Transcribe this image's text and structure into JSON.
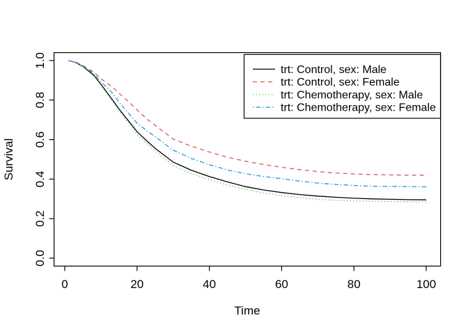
{
  "figure": {
    "background": "#ffffff",
    "xlabel": "Time",
    "ylabel": "Survival",
    "x_tick_labels": [
      "0",
      "20",
      "40",
      "60",
      "80",
      "100"
    ],
    "y_tick_labels": [
      "0.0",
      "0.2",
      "0.4",
      "0.6",
      "0.8",
      "1.0"
    ]
  },
  "legend": {
    "position": "top-right",
    "entries": [
      {
        "label": "trt: Control, sex: Male",
        "color": "#000000",
        "dash": ""
      },
      {
        "label": "trt: Control, sex: Female",
        "color": "#DF536B",
        "dash": "6,5"
      },
      {
        "label": "trt: Chemotherapy, sex: Male",
        "color": "#61D04F",
        "dash": "1.5,3"
      },
      {
        "label": "trt: Chemotherapy, sex: Female",
        "color": "#2297E6",
        "dash": "1.5,3,6.5,3"
      }
    ]
  },
  "chart_data": {
    "type": "line",
    "title": "",
    "xlabel": "Time",
    "ylabel": "Survival",
    "xlim": [
      1,
      100
    ],
    "ylim": [
      0,
      1
    ],
    "x_ticks": [
      0,
      20,
      40,
      60,
      80,
      100
    ],
    "y_ticks": [
      0.0,
      0.2,
      0.4,
      0.6,
      0.8,
      1.0
    ],
    "grid": false,
    "legend_position": "top-right",
    "x": [
      1,
      3,
      5,
      8,
      10,
      13,
      15,
      18,
      20,
      23,
      25,
      30,
      35,
      40,
      45,
      50,
      55,
      60,
      65,
      70,
      75,
      80,
      85,
      90,
      95,
      100
    ],
    "series": [
      {
        "name": "trt: Control, sex: Male",
        "color": "#000000",
        "linestyle": "solid",
        "values": [
          1.0,
          0.99,
          0.97,
          0.926,
          0.88,
          0.806,
          0.755,
          0.686,
          0.64,
          0.588,
          0.556,
          0.486,
          0.445,
          0.413,
          0.386,
          0.362,
          0.345,
          0.332,
          0.322,
          0.314,
          0.308,
          0.303,
          0.3,
          0.298,
          0.296,
          0.295
        ]
      },
      {
        "name": "trt: Control, sex: Female",
        "color": "#DF536B",
        "linestyle": "dashed",
        "values": [
          1.0,
          0.992,
          0.975,
          0.942,
          0.908,
          0.869,
          0.835,
          0.786,
          0.75,
          0.7,
          0.672,
          0.602,
          0.567,
          0.537,
          0.511,
          0.49,
          0.474,
          0.46,
          0.448,
          0.438,
          0.431,
          0.426,
          0.423,
          0.421,
          0.42,
          0.42
        ]
      },
      {
        "name": "trt: Chemotherapy, sex: Male",
        "color": "#61D04F",
        "linestyle": "dotted",
        "values": [
          1.0,
          0.989,
          0.968,
          0.922,
          0.874,
          0.798,
          0.745,
          0.674,
          0.627,
          0.573,
          0.541,
          0.469,
          0.429,
          0.397,
          0.37,
          0.348,
          0.33,
          0.316,
          0.306,
          0.298,
          0.293,
          0.29,
          0.288,
          0.286,
          0.285,
          0.284
        ]
      },
      {
        "name": "trt: Chemotherapy, sex: Female",
        "color": "#2297E6",
        "linestyle": "dashdot",
        "values": [
          1.0,
          0.991,
          0.972,
          0.935,
          0.893,
          0.839,
          0.79,
          0.726,
          0.683,
          0.641,
          0.615,
          0.546,
          0.505,
          0.473,
          0.447,
          0.427,
          0.413,
          0.402,
          0.39,
          0.38,
          0.373,
          0.368,
          0.364,
          0.363,
          0.362,
          0.361
        ]
      }
    ]
  }
}
